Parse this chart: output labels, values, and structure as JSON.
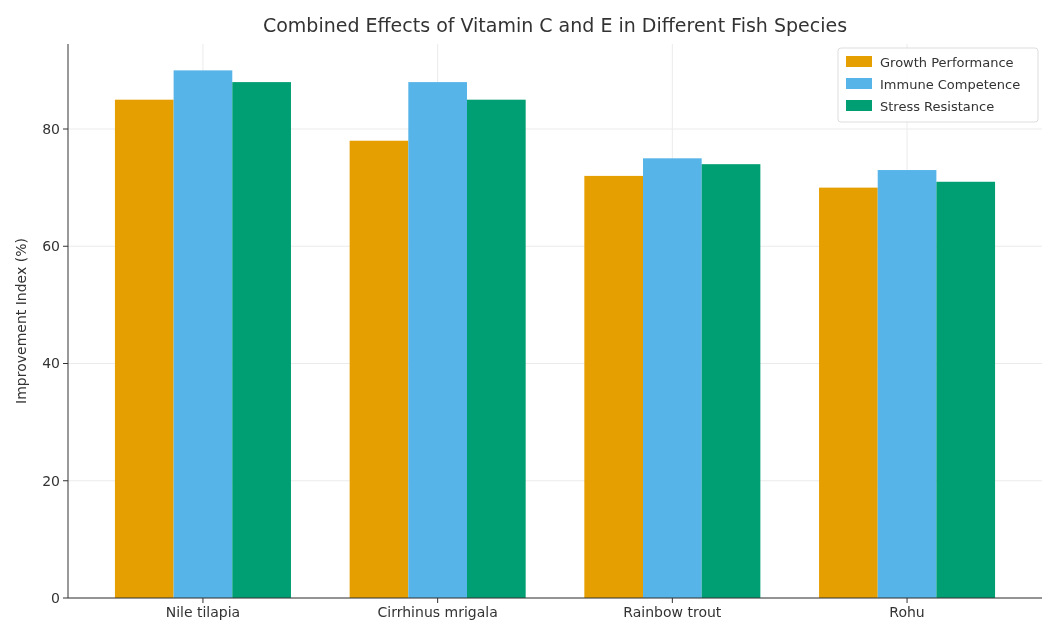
{
  "chart_data": {
    "type": "bar",
    "title": "Combined Effects of Vitamin C and E in Different Fish Species",
    "ylabel": "Improvement Index (%)",
    "categories": [
      "Nile tilapia",
      "Cirrhinus mrigala",
      "Rainbow trout",
      "Rohu"
    ],
    "series": [
      {
        "name": "Growth Performance",
        "color": "#e69f00",
        "values": [
          85,
          78,
          72,
          70
        ]
      },
      {
        "name": "Immune Competence",
        "color": "#56b4e9",
        "values": [
          90,
          88,
          75,
          73
        ]
      },
      {
        "name": "Stress Resistance",
        "color": "#009e73",
        "values": [
          88,
          85,
          74,
          71
        ]
      }
    ],
    "ylim": [
      0,
      94.5
    ],
    "yticks": [
      0,
      20,
      40,
      60,
      80
    ],
    "grid": true,
    "legend": "top right"
  }
}
